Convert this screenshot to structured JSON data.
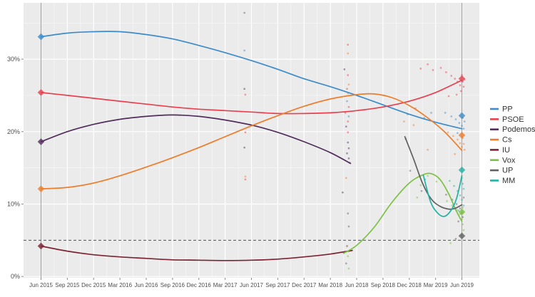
{
  "chart_data": {
    "type": "line",
    "title": "",
    "xlabel": "",
    "ylabel": "",
    "grid": true,
    "legend_position": "right",
    "panel_bg": "#ebebeb",
    "grid_color": "#ffffff",
    "axis_text_color": "#4d4d4d",
    "x_tick_months": [
      0,
      3,
      6,
      9,
      12,
      15,
      18,
      21,
      24,
      27,
      30,
      33,
      36,
      39,
      42,
      45,
      48
    ],
    "x_tick_labels": [
      "Jun 2015",
      "Sep 2015",
      "Dec 2015",
      "Mar 2016",
      "Jun 2016",
      "Sep 2016",
      "Dec 2016",
      "Mar 2017",
      "Jun 2017",
      "Sep 2017",
      "Dec 2017",
      "Mar 2018",
      "Jun 2018",
      "Sep 2018",
      "Dec 2018",
      "Mar 2019",
      "Jun 2019"
    ],
    "y_ticks": [
      {
        "label": "0%",
        "value": 0
      },
      {
        "label": "10%",
        "value": 10
      },
      {
        "label": "20%",
        "value": 20
      },
      {
        "label": "30%",
        "value": 30
      }
    ],
    "ylim": [
      0,
      37.8
    ],
    "xlim_months": [
      -2,
      49.3
    ],
    "threshold_line": {
      "value": 5,
      "style": "dashed",
      "color": "#3a3a3a"
    },
    "election_marker_months": [
      0,
      48
    ],
    "election_marker_color": "#a0a0a0",
    "series": [
      {
        "name": "PP",
        "color": "#3d8cc9",
        "points": [
          [
            0,
            33.1
          ],
          [
            3,
            33.6
          ],
          [
            6,
            33.8
          ],
          [
            9,
            33.8
          ],
          [
            12,
            33.4
          ],
          [
            15,
            32.8
          ],
          [
            18,
            31.9
          ],
          [
            21,
            30.9
          ],
          [
            24,
            29.8
          ],
          [
            27,
            28.6
          ],
          [
            30,
            27.3
          ],
          [
            33,
            26.2
          ],
          [
            36,
            25.0
          ],
          [
            39,
            23.7
          ],
          [
            42,
            22.4
          ],
          [
            45,
            21.3
          ],
          [
            48,
            20.4
          ]
        ]
      },
      {
        "name": "PSOE",
        "color": "#e8404f",
        "points": [
          [
            0,
            25.4
          ],
          [
            3,
            25.0
          ],
          [
            6,
            24.6
          ],
          [
            9,
            24.2
          ],
          [
            12,
            23.8
          ],
          [
            15,
            23.4
          ],
          [
            18,
            23.1
          ],
          [
            21,
            22.9
          ],
          [
            24,
            22.7
          ],
          [
            27,
            22.5
          ],
          [
            30,
            22.5
          ],
          [
            33,
            22.6
          ],
          [
            36,
            22.9
          ],
          [
            39,
            23.4
          ],
          [
            42,
            24.2
          ],
          [
            45,
            25.4
          ],
          [
            48,
            27.1
          ]
        ]
      },
      {
        "name": "Podemos",
        "color": "#512e5c",
        "points": [
          [
            0,
            18.6
          ],
          [
            3,
            20.0
          ],
          [
            6,
            21.0
          ],
          [
            9,
            21.7
          ],
          [
            12,
            22.1
          ],
          [
            15,
            22.3
          ],
          [
            18,
            22.1
          ],
          [
            21,
            21.6
          ],
          [
            24,
            20.9
          ],
          [
            27,
            19.9
          ],
          [
            30,
            18.6
          ],
          [
            33,
            17.1
          ],
          [
            35.3,
            15.6
          ]
        ]
      },
      {
        "name": "Cs",
        "color": "#ee7d2b",
        "points": [
          [
            0,
            12.1
          ],
          [
            3,
            12.3
          ],
          [
            6,
            12.9
          ],
          [
            9,
            13.9
          ],
          [
            12,
            15.1
          ],
          [
            15,
            16.4
          ],
          [
            18,
            17.8
          ],
          [
            21,
            19.3
          ],
          [
            24,
            20.8
          ],
          [
            27,
            22.2
          ],
          [
            30,
            23.5
          ],
          [
            33,
            24.5
          ],
          [
            36,
            25.1
          ],
          [
            38,
            25.2
          ],
          [
            40,
            24.7
          ],
          [
            42,
            23.6
          ],
          [
            44,
            22.0
          ],
          [
            46,
            20.0
          ],
          [
            48,
            17.4
          ]
        ]
      },
      {
        "name": "IU",
        "color": "#7c2433",
        "points": [
          [
            0,
            4.2
          ],
          [
            3,
            3.5
          ],
          [
            6,
            3.0
          ],
          [
            9,
            2.7
          ],
          [
            12,
            2.5
          ],
          [
            15,
            2.3
          ],
          [
            18,
            2.25
          ],
          [
            21,
            2.2
          ],
          [
            24,
            2.25
          ],
          [
            27,
            2.4
          ],
          [
            30,
            2.7
          ],
          [
            33,
            3.1
          ],
          [
            35.5,
            3.6
          ]
        ]
      },
      {
        "name": "Vox",
        "color": "#7bc143",
        "points": [
          [
            34.5,
            3.2
          ],
          [
            36,
            4.3
          ],
          [
            38,
            6.8
          ],
          [
            40,
            10.2
          ],
          [
            42,
            12.9
          ],
          [
            43.5,
            14.0
          ],
          [
            44.5,
            14.2
          ],
          [
            45.5,
            13.4
          ],
          [
            46.5,
            11.4
          ],
          [
            47.3,
            9.2
          ],
          [
            48,
            7.6
          ]
        ]
      },
      {
        "name": "UP",
        "color": "#606060",
        "points": [
          [
            41.5,
            19.3
          ],
          [
            42.5,
            16.2
          ],
          [
            43.5,
            12.9
          ],
          [
            44.5,
            10.7
          ],
          [
            45.5,
            9.7
          ],
          [
            46.5,
            9.3
          ],
          [
            47.2,
            9.4
          ],
          [
            48,
            9.9
          ]
        ]
      },
      {
        "name": "MM",
        "color": "#20b2a5",
        "points": [
          [
            43.6,
            14.0
          ],
          [
            44.4,
            10.4
          ],
          [
            45.2,
            8.8
          ],
          [
            46,
            8.3
          ],
          [
            46.8,
            9.2
          ],
          [
            47.4,
            10.8
          ],
          [
            48,
            13.9
          ]
        ]
      }
    ],
    "election_results": [
      {
        "party": "PP",
        "month": 0,
        "value": 33.1
      },
      {
        "party": "PSOE",
        "month": 0,
        "value": 25.4
      },
      {
        "party": "Podemos",
        "month": 0,
        "value": 18.6
      },
      {
        "party": "Cs",
        "month": 0,
        "value": 12.1
      },
      {
        "party": "IU",
        "month": 0,
        "value": 4.2
      },
      {
        "party": "PSOE",
        "month": 48,
        "value": 27.3
      },
      {
        "party": "PP",
        "month": 48,
        "value": 22.2
      },
      {
        "party": "Cs",
        "month": 48,
        "value": 19.5
      },
      {
        "party": "MM",
        "month": 48,
        "value": 14.7
      },
      {
        "party": "Vox",
        "month": 48,
        "value": 8.9
      },
      {
        "party": "UP",
        "month": 48,
        "value": 5.6
      }
    ],
    "poll_points": [
      [
        "UP",
        23.2,
        36.4
      ],
      [
        "PP",
        23.2,
        31.2
      ],
      [
        "Podemos",
        23.2,
        25.9
      ],
      [
        "PSOE",
        23.3,
        25.1
      ],
      [
        "PSOE",
        23.3,
        19.9
      ],
      [
        "Podemos",
        23.2,
        17.8
      ],
      [
        "Cs",
        23.3,
        13.8
      ],
      [
        "PSOE",
        23.3,
        13.4
      ],
      [
        "PSOE",
        35.0,
        32.0
      ],
      [
        "Cs",
        35.0,
        30.8
      ],
      [
        "Podemos",
        34.6,
        28.6
      ],
      [
        "PSOE",
        35.0,
        27.8
      ],
      [
        "Cs",
        35.1,
        26.5
      ],
      [
        "PSOE",
        34.9,
        25.9
      ],
      [
        "Cs",
        35.0,
        25.3
      ],
      [
        "PP",
        34.9,
        24.2
      ],
      [
        "PSOE",
        35.1,
        23.4
      ],
      [
        "PSOE",
        34.7,
        22.6
      ],
      [
        "PP",
        35.1,
        22.1
      ],
      [
        "PSOE",
        35.0,
        21.4
      ],
      [
        "Podemos",
        34.8,
        20.7
      ],
      [
        "PSOE",
        35.0,
        19.9
      ],
      [
        "Podemos",
        35.0,
        18.5
      ],
      [
        "Podemos",
        35.1,
        17.7
      ],
      [
        "Podemos",
        34.9,
        17.0
      ],
      [
        "Podemos",
        35.1,
        16.3
      ],
      [
        "Podemos",
        35.2,
        15.7
      ],
      [
        "Cs",
        34.8,
        13.6
      ],
      [
        "Podemos",
        34.4,
        11.6
      ],
      [
        "UP",
        35.0,
        8.7
      ],
      [
        "UP",
        35.1,
        6.9
      ],
      [
        "IU",
        34.9,
        4.2
      ],
      [
        "Vox",
        35.1,
        3.5
      ],
      [
        "Vox",
        35.0,
        2.8
      ],
      [
        "UP",
        34.8,
        1.8
      ],
      [
        "Vox",
        35.1,
        1.1
      ],
      [
        "UP",
        41.6,
        19.0
      ],
      [
        "PSOE",
        42.7,
        23.2
      ],
      [
        "PSOE",
        43.3,
        28.7
      ],
      [
        "PSOE",
        44.1,
        29.3
      ],
      [
        "PSOE",
        44.7,
        28.5
      ],
      [
        "Vox",
        44.1,
        13.9
      ],
      [
        "Vox",
        43.3,
        12.6
      ],
      [
        "Vox",
        45.1,
        13.1
      ],
      [
        "UP",
        42.1,
        14.6
      ],
      [
        "Cs",
        41.4,
        21.4
      ],
      [
        "Cs",
        42.5,
        20.9
      ],
      [
        "PP",
        41.8,
        22.4
      ],
      [
        "PP",
        43.7,
        21.9
      ],
      [
        "PP",
        44.5,
        22.6
      ],
      [
        "Cs",
        44.1,
        17.5
      ],
      [
        "MM",
        43.8,
        13.4
      ],
      [
        "Vox",
        42.9,
        10.9
      ],
      [
        "UP",
        43.4,
        11.8
      ],
      [
        "PSOE",
        45.6,
        28.8
      ],
      [
        "PSOE",
        46.2,
        28.2
      ],
      [
        "PSOE",
        46.8,
        27.7
      ],
      [
        "PSOE",
        47.2,
        27.3
      ],
      [
        "PSOE",
        47.5,
        26.9
      ],
      [
        "PSOE",
        47.8,
        26.4
      ],
      [
        "PSOE",
        48.0,
        27.8
      ],
      [
        "PSOE",
        48.1,
        26.9
      ],
      [
        "PSOE",
        48.2,
        26.2
      ],
      [
        "PSOE",
        47.9,
        25.6
      ],
      [
        "PSOE",
        47.4,
        25.1
      ],
      [
        "PSOE",
        46.5,
        24.9
      ],
      [
        "PSOE",
        48.3,
        27.2
      ],
      [
        "PP",
        46.1,
        22.6
      ],
      [
        "PP",
        46.8,
        22.1
      ],
      [
        "PP",
        47.3,
        21.7
      ],
      [
        "PP",
        47.7,
        21.2
      ],
      [
        "PP",
        48.0,
        20.8
      ],
      [
        "PP",
        48.1,
        21.9
      ],
      [
        "PP",
        48.2,
        20.4
      ],
      [
        "PP",
        47.5,
        19.8
      ],
      [
        "PP",
        48.3,
        21.4
      ],
      [
        "Cs",
        46.4,
        19.9
      ],
      [
        "Cs",
        47.0,
        19.4
      ],
      [
        "Cs",
        47.5,
        18.9
      ],
      [
        "Cs",
        47.8,
        18.4
      ],
      [
        "Cs",
        48.0,
        17.9
      ],
      [
        "Cs",
        48.1,
        19.1
      ],
      [
        "Cs",
        48.2,
        18.3
      ],
      [
        "Cs",
        48.3,
        17.5
      ],
      [
        "Cs",
        47.2,
        16.9
      ],
      [
        "MM",
        46.6,
        13.2
      ],
      [
        "MM",
        47.1,
        12.5
      ],
      [
        "MM",
        47.5,
        11.8
      ],
      [
        "MM",
        47.8,
        11.2
      ],
      [
        "MM",
        48.0,
        13.6
      ],
      [
        "MM",
        48.1,
        12.8
      ],
      [
        "MM",
        48.2,
        12.1
      ],
      [
        "MM",
        48.0,
        10.6
      ],
      [
        "MM",
        48.2,
        9.8
      ],
      [
        "MM",
        47.6,
        9.1
      ],
      [
        "Vox",
        46.3,
        10.4
      ],
      [
        "Vox",
        46.9,
        9.8
      ],
      [
        "Vox",
        47.4,
        9.2
      ],
      [
        "Vox",
        47.8,
        8.6
      ],
      [
        "Vox",
        48.0,
        7.9
      ],
      [
        "Vox",
        48.1,
        7.2
      ],
      [
        "Vox",
        48.2,
        6.4
      ],
      [
        "Vox",
        47.9,
        5.7
      ],
      [
        "Vox",
        48.1,
        9.5
      ],
      [
        "UP",
        46.2,
        11.3
      ],
      [
        "UP",
        46.9,
        10.6
      ],
      [
        "UP",
        47.4,
        10.0
      ],
      [
        "UP",
        47.8,
        9.4
      ],
      [
        "UP",
        48.0,
        8.8
      ],
      [
        "UP",
        48.1,
        8.2
      ],
      [
        "UP",
        48.2,
        10.9
      ],
      [
        "UP",
        47.6,
        7.6
      ],
      [
        "UP",
        47.3,
        5.2
      ],
      [
        "Vox",
        46.7,
        4.6
      ]
    ],
    "legend_labels": [
      "PP",
      "PSOE",
      "Podemos",
      "Cs",
      "IU",
      "Vox",
      "UP",
      "MM"
    ]
  }
}
